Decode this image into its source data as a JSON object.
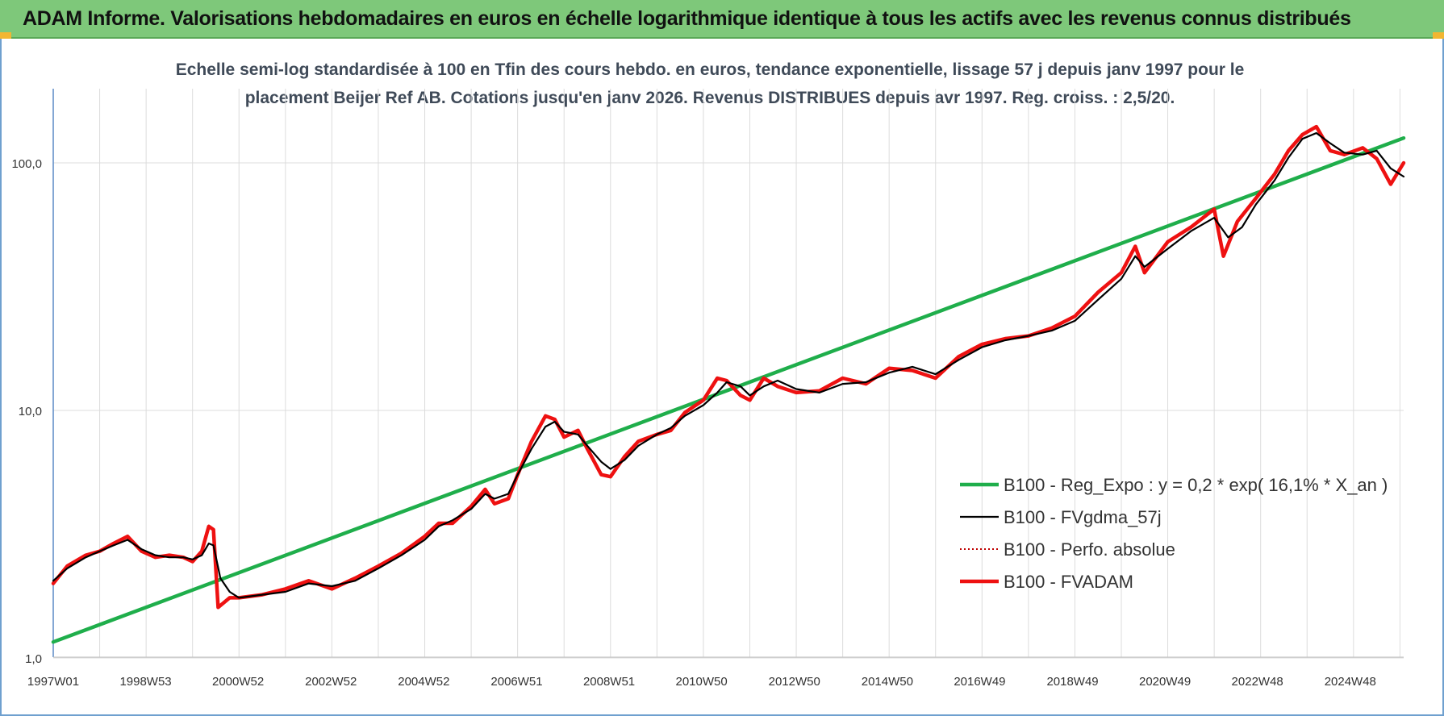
{
  "header": {
    "title": "ADAM Informe. Valorisations hebdomadaires en euros en échelle logarithmique identique à tous les actifs avec les revenus connus distribués"
  },
  "chart_data": {
    "type": "line",
    "title_line1": "Echelle semi-log standardisée à 100 en Tfin des cours hebdo. en euros, tendance exponentielle, lissage 57 j depuis janv 1997 pour le",
    "title_line2": "placement Beijer Ref AB. Cotations jusqu'en janv 2026. Revenus DISTRIBUES depuis avr 1997. Reg. croiss. : 2,5/20.",
    "y_scale": "log",
    "ylim": [
      1,
      170
    ],
    "y_ticks": [
      {
        "value": 1,
        "label": "1,0"
      },
      {
        "value": 10,
        "label": "10,0"
      },
      {
        "value": 100,
        "label": "100,0"
      }
    ],
    "xlim": [
      1997.0,
      2026.08
    ],
    "x_ticks": [
      {
        "year": 1997.0,
        "label": "1997W01"
      },
      {
        "year": 1998.99,
        "label": "1998W53"
      },
      {
        "year": 2000.98,
        "label": "2000W52"
      },
      {
        "year": 2002.98,
        "label": "2002W52"
      },
      {
        "year": 2004.98,
        "label": "2004W52"
      },
      {
        "year": 2006.98,
        "label": "2006W51"
      },
      {
        "year": 2008.97,
        "label": "2008W51"
      },
      {
        "year": 2010.96,
        "label": "2010W50"
      },
      {
        "year": 2012.96,
        "label": "2012W50"
      },
      {
        "year": 2014.96,
        "label": "2014W50"
      },
      {
        "year": 2016.95,
        "label": "2016W49"
      },
      {
        "year": 2018.95,
        "label": "2018W49"
      },
      {
        "year": 2020.94,
        "label": "2020W49"
      },
      {
        "year": 2022.93,
        "label": "2022W48"
      },
      {
        "year": 2024.93,
        "label": "2024W48"
      }
    ],
    "legend_position": "right",
    "series": [
      {
        "name": "B100 - Reg_Expo : y = 0,2 * exp( 16,1% *  X_an )",
        "color": "#1fae4b",
        "style": "solid-thick",
        "points": [
          [
            1997.0,
            1.16
          ],
          [
            2026.08,
            126
          ]
        ]
      },
      {
        "name": "B100 - FVgdma_57j",
        "color": "#000000",
        "style": "solid-thin",
        "points": [
          [
            1997.0,
            2.05
          ],
          [
            1997.3,
            2.3
          ],
          [
            1997.7,
            2.55
          ],
          [
            1998.0,
            2.7
          ],
          [
            1998.3,
            2.85
          ],
          [
            1998.6,
            3.0
          ],
          [
            1998.9,
            2.75
          ],
          [
            1999.2,
            2.6
          ],
          [
            1999.5,
            2.55
          ],
          [
            1999.8,
            2.55
          ],
          [
            2000.0,
            2.5
          ],
          [
            2000.2,
            2.6
          ],
          [
            2000.35,
            2.9
          ],
          [
            2000.45,
            2.85
          ],
          [
            2000.6,
            2.1
          ],
          [
            2000.8,
            1.85
          ],
          [
            2001.0,
            1.75
          ],
          [
            2001.5,
            1.8
          ],
          [
            2002.0,
            1.85
          ],
          [
            2002.5,
            2.0
          ],
          [
            2003.0,
            1.95
          ],
          [
            2003.5,
            2.05
          ],
          [
            2004.0,
            2.3
          ],
          [
            2004.5,
            2.6
          ],
          [
            2005.0,
            3.0
          ],
          [
            2005.3,
            3.4
          ],
          [
            2005.6,
            3.6
          ],
          [
            2006.0,
            4.0
          ],
          [
            2006.3,
            4.6
          ],
          [
            2006.5,
            4.4
          ],
          [
            2006.8,
            4.6
          ],
          [
            2007.0,
            5.5
          ],
          [
            2007.3,
            7.0
          ],
          [
            2007.6,
            8.6
          ],
          [
            2007.8,
            9.0
          ],
          [
            2008.0,
            8.2
          ],
          [
            2008.3,
            8.0
          ],
          [
            2008.5,
            7.2
          ],
          [
            2008.8,
            6.2
          ],
          [
            2009.0,
            5.8
          ],
          [
            2009.3,
            6.3
          ],
          [
            2009.6,
            7.2
          ],
          [
            2010.0,
            8.0
          ],
          [
            2010.3,
            8.5
          ],
          [
            2010.6,
            9.5
          ],
          [
            2011.0,
            10.5
          ],
          [
            2011.3,
            11.8
          ],
          [
            2011.5,
            13.0
          ],
          [
            2011.8,
            12.5
          ],
          [
            2012.0,
            11.5
          ],
          [
            2012.3,
            12.5
          ],
          [
            2012.6,
            13.2
          ],
          [
            2013.0,
            12.2
          ],
          [
            2013.5,
            11.8
          ],
          [
            2014.0,
            12.8
          ],
          [
            2014.5,
            13.0
          ],
          [
            2015.0,
            14.2
          ],
          [
            2015.5,
            15.0
          ],
          [
            2016.0,
            14.0
          ],
          [
            2016.5,
            16.0
          ],
          [
            2017.0,
            18.0
          ],
          [
            2017.5,
            19.2
          ],
          [
            2018.0,
            20.0
          ],
          [
            2018.5,
            21.0
          ],
          [
            2019.0,
            23.0
          ],
          [
            2019.5,
            28.0
          ],
          [
            2020.0,
            34.0
          ],
          [
            2020.3,
            42.0
          ],
          [
            2020.5,
            38.0
          ],
          [
            2021.0,
            45.0
          ],
          [
            2021.5,
            53.0
          ],
          [
            2022.0,
            60.0
          ],
          [
            2022.3,
            50.0
          ],
          [
            2022.6,
            55.0
          ],
          [
            2022.9,
            68.0
          ],
          [
            2023.3,
            85.0
          ],
          [
            2023.6,
            105.0
          ],
          [
            2023.9,
            125.0
          ],
          [
            2024.2,
            132.0
          ],
          [
            2024.5,
            120.0
          ],
          [
            2024.8,
            110.0
          ],
          [
            2025.2,
            108.0
          ],
          [
            2025.5,
            112.0
          ],
          [
            2025.8,
            95.0
          ],
          [
            2026.08,
            88.0
          ]
        ]
      },
      {
        "name": "B100 - Perfo. absolue",
        "color": "#c00000",
        "style": "dotted"
      },
      {
        "name": "B100 - FVADAM",
        "color": "#ee1111",
        "style": "solid-thick",
        "points": [
          [
            1997.0,
            2.0
          ],
          [
            1997.3,
            2.35
          ],
          [
            1997.7,
            2.6
          ],
          [
            1998.0,
            2.7
          ],
          [
            1998.3,
            2.9
          ],
          [
            1998.6,
            3.1
          ],
          [
            1998.9,
            2.7
          ],
          [
            1999.2,
            2.55
          ],
          [
            1999.5,
            2.6
          ],
          [
            1999.8,
            2.55
          ],
          [
            2000.0,
            2.45
          ],
          [
            2000.2,
            2.7
          ],
          [
            2000.35,
            3.4
          ],
          [
            2000.45,
            3.3
          ],
          [
            2000.55,
            1.6
          ],
          [
            2000.8,
            1.75
          ],
          [
            2001.0,
            1.75
          ],
          [
            2001.5,
            1.8
          ],
          [
            2002.0,
            1.9
          ],
          [
            2002.5,
            2.05
          ],
          [
            2003.0,
            1.9
          ],
          [
            2003.5,
            2.1
          ],
          [
            2004.0,
            2.35
          ],
          [
            2004.5,
            2.65
          ],
          [
            2005.0,
            3.1
          ],
          [
            2005.3,
            3.5
          ],
          [
            2005.6,
            3.5
          ],
          [
            2006.0,
            4.1
          ],
          [
            2006.3,
            4.8
          ],
          [
            2006.5,
            4.2
          ],
          [
            2006.8,
            4.4
          ],
          [
            2007.0,
            5.5
          ],
          [
            2007.3,
            7.5
          ],
          [
            2007.6,
            9.5
          ],
          [
            2007.8,
            9.2
          ],
          [
            2008.0,
            7.8
          ],
          [
            2008.3,
            8.3
          ],
          [
            2008.5,
            7.0
          ],
          [
            2008.8,
            5.5
          ],
          [
            2009.0,
            5.4
          ],
          [
            2009.3,
            6.5
          ],
          [
            2009.6,
            7.5
          ],
          [
            2010.0,
            8.0
          ],
          [
            2010.3,
            8.3
          ],
          [
            2010.6,
            9.8
          ],
          [
            2011.0,
            11.0
          ],
          [
            2011.3,
            13.5
          ],
          [
            2011.5,
            13.2
          ],
          [
            2011.8,
            11.5
          ],
          [
            2012.0,
            11.0
          ],
          [
            2012.3,
            13.5
          ],
          [
            2012.6,
            12.5
          ],
          [
            2013.0,
            11.8
          ],
          [
            2013.5,
            12.0
          ],
          [
            2014.0,
            13.5
          ],
          [
            2014.5,
            12.8
          ],
          [
            2015.0,
            14.8
          ],
          [
            2015.5,
            14.5
          ],
          [
            2016.0,
            13.5
          ],
          [
            2016.5,
            16.5
          ],
          [
            2017.0,
            18.5
          ],
          [
            2017.5,
            19.5
          ],
          [
            2018.0,
            20.0
          ],
          [
            2018.5,
            21.5
          ],
          [
            2019.0,
            24.0
          ],
          [
            2019.5,
            30.0
          ],
          [
            2020.0,
            36.0
          ],
          [
            2020.3,
            46.0
          ],
          [
            2020.5,
            36.0
          ],
          [
            2021.0,
            48.0
          ],
          [
            2021.5,
            55.0
          ],
          [
            2022.0,
            65.0
          ],
          [
            2022.2,
            42.0
          ],
          [
            2022.5,
            58.0
          ],
          [
            2022.9,
            72.0
          ],
          [
            2023.3,
            90.0
          ],
          [
            2023.6,
            112.0
          ],
          [
            2023.9,
            130.0
          ],
          [
            2024.2,
            140.0
          ],
          [
            2024.5,
            112.0
          ],
          [
            2024.8,
            108.0
          ],
          [
            2025.2,
            115.0
          ],
          [
            2025.5,
            104.0
          ],
          [
            2025.8,
            82.0
          ],
          [
            2026.08,
            100.0
          ]
        ]
      }
    ]
  }
}
